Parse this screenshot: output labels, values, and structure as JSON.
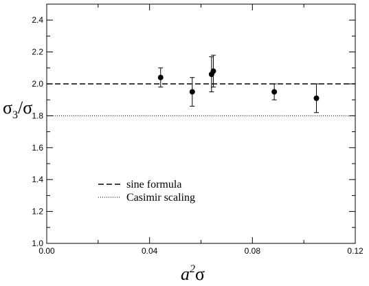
{
  "chart_data": {
    "type": "scatter",
    "xlabel": "a²σ",
    "ylabel": "σ₃/σ",
    "xlim": [
      0.0,
      0.12
    ],
    "ylim": [
      1.0,
      2.5
    ],
    "x_ticks": [
      "0.00",
      "0.04",
      "0.08",
      "0.12"
    ],
    "y_ticks": [
      "1.0",
      "1.2",
      "1.4",
      "1.6",
      "1.8",
      "2.0",
      "2.2",
      "2.4"
    ],
    "grid": false,
    "legend_position": "lower-left",
    "series": [
      {
        "type": "scatter-errorbar",
        "color": "#000000",
        "points": [
          {
            "x": 0.0443,
            "y": 2.04,
            "err": 0.06
          },
          {
            "x": 0.0566,
            "y": 1.95,
            "err": 0.09
          },
          {
            "x": 0.0641,
            "y": 2.06,
            "err": 0.11
          },
          {
            "x": 0.0648,
            "y": 2.08,
            "err": 0.1
          },
          {
            "x": 0.0885,
            "y": 1.95,
            "err": 0.05
          },
          {
            "x": 0.1049,
            "y": 1.91,
            "err": 0.09
          }
        ]
      },
      {
        "name": "sine formula",
        "type": "hline",
        "y": 2.0,
        "style": "dashed",
        "color": "#000000"
      },
      {
        "name": "Casimir scaling",
        "type": "hline",
        "y": 1.8,
        "style": "dotted",
        "color": "#000000"
      }
    ]
  }
}
